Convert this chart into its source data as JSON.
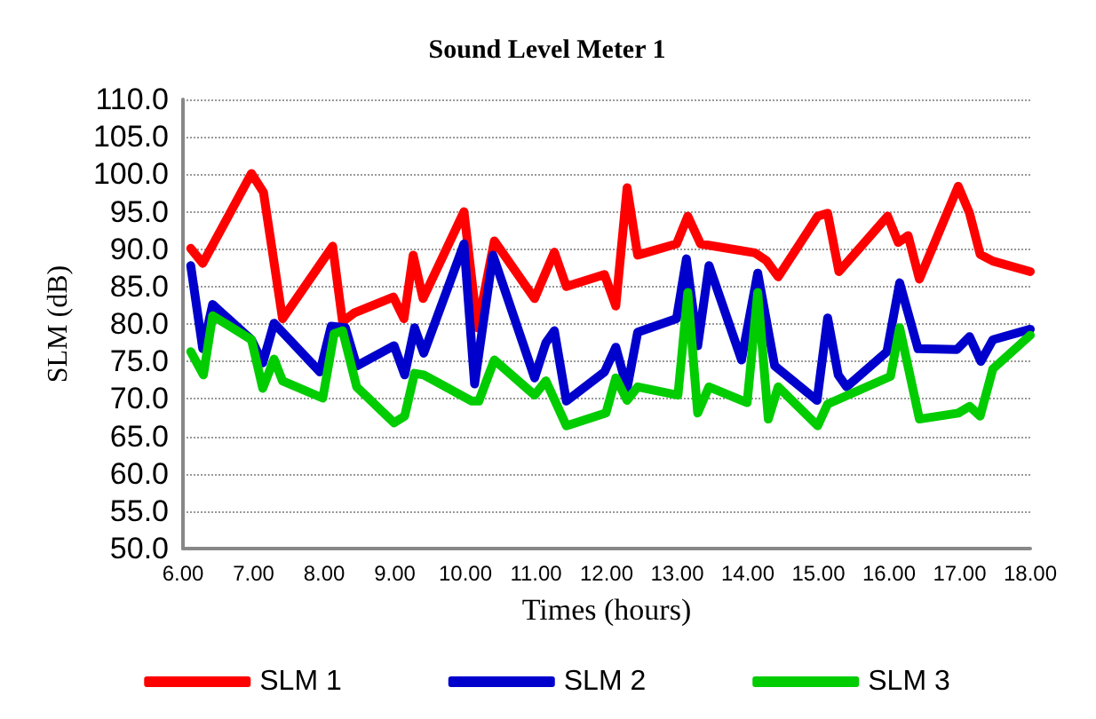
{
  "chart_data": {
    "type": "line",
    "title": "Sound Level Meter 1",
    "xlabel": "Times (hours)",
    "ylabel": "SLM (dB)",
    "xlim": [
      6,
      18
    ],
    "xticks": [
      {
        "value": 6,
        "label": "6.00"
      },
      {
        "value": 7,
        "label": "7.00"
      },
      {
        "value": 8,
        "label": "8.00"
      },
      {
        "value": 9,
        "label": "9.00"
      },
      {
        "value": 10,
        "label": "10.00"
      },
      {
        "value": 11,
        "label": "11.00"
      },
      {
        "value": 12,
        "label": "12.00"
      },
      {
        "value": 13,
        "label": "13.00"
      },
      {
        "value": 14,
        "label": "14.00"
      },
      {
        "value": 15,
        "label": "15.00"
      },
      {
        "value": 16,
        "label": "16.00"
      },
      {
        "value": 17,
        "label": "17.00"
      },
      {
        "value": 18,
        "label": "18.00"
      }
    ],
    "ylim": [
      50,
      110
    ],
    "yticks": [
      {
        "value": 50,
        "label": "50.0"
      },
      {
        "value": 55,
        "label": "55.0"
      },
      {
        "value": 60,
        "label": "60.0"
      },
      {
        "value": 65,
        "label": "65.0"
      },
      {
        "value": 70,
        "label": "70.0"
      },
      {
        "value": 75,
        "label": "75.0"
      },
      {
        "value": 80,
        "label": "80.0"
      },
      {
        "value": 85,
        "label": "85.0"
      },
      {
        "value": 90,
        "label": "90.0"
      },
      {
        "value": 95,
        "label": "95.0"
      },
      {
        "value": 100,
        "label": "100.0"
      },
      {
        "value": 105,
        "label": "105.0"
      },
      {
        "value": 110,
        "label": "110.0"
      }
    ],
    "grid": "y",
    "legend": "bottom",
    "marker": "none",
    "line_style": "solid",
    "series": [
      {
        "name": "SLM 1",
        "color": "#ff0000",
        "x": [
          6.11,
          6.28,
          6.97,
          7.14,
          7.41,
          8.12,
          8.26,
          8.43,
          8.98,
          9.13,
          9.26,
          9.4,
          9.98,
          10.17,
          10.41,
          10.98,
          11.26,
          11.43,
          11.97,
          12.13,
          12.29,
          12.44,
          12.99,
          13.15,
          13.33,
          14.1,
          14.26,
          14.43,
          14.99,
          15.13,
          15.29,
          15.98,
          16.13,
          16.27,
          16.43,
          16.98,
          17.14,
          17.29,
          17.47,
          18.0
        ],
        "values": [
          90.1,
          88.1,
          100.1,
          97.6,
          80.7,
          90.4,
          80.3,
          81.5,
          83.6,
          80.7,
          89.2,
          83.4,
          95.0,
          79.5,
          91.1,
          83.4,
          89.6,
          85.0,
          86.6,
          82.4,
          98.2,
          89.2,
          90.7,
          94.4,
          90.7,
          89.5,
          88.5,
          86.3,
          94.4,
          94.8,
          87.0,
          94.4,
          90.9,
          91.8,
          86.0,
          98.4,
          94.8,
          89.3,
          88.4,
          87.0
        ]
      },
      {
        "name": "SLM 2",
        "color": "#0000cc",
        "x": [
          6.11,
          6.28,
          6.42,
          6.97,
          7.13,
          7.29,
          7.94,
          8.1,
          8.3,
          8.46,
          8.99,
          9.14,
          9.28,
          9.41,
          9.98,
          10.13,
          10.39,
          10.98,
          11.14,
          11.26,
          11.43,
          11.97,
          12.13,
          12.29,
          12.44,
          12.99,
          13.13,
          13.29,
          13.45,
          13.91,
          14.14,
          14.38,
          14.98,
          15.13,
          15.28,
          15.4,
          15.97,
          16.15,
          16.41,
          16.96,
          17.14,
          17.3,
          17.47,
          18.0
        ],
        "values": [
          87.8,
          76.7,
          82.6,
          77.9,
          74.8,
          80.1,
          73.6,
          79.7,
          79.5,
          74.4,
          77.1,
          73.2,
          79.5,
          76.1,
          90.7,
          72.0,
          89.2,
          72.8,
          77.5,
          79.1,
          69.7,
          73.6,
          76.9,
          71.4,
          78.9,
          80.7,
          88.7,
          77.1,
          87.8,
          75.2,
          86.8,
          74.4,
          69.8,
          80.8,
          73.2,
          71.6,
          76.3,
          85.5,
          76.7,
          76.6,
          78.3,
          75.0,
          77.9,
          79.3
        ]
      },
      {
        "name": "SLM 3",
        "color": "#00cc00",
        "x": [
          6.11,
          6.29,
          6.42,
          6.97,
          7.13,
          7.29,
          7.41,
          7.98,
          8.14,
          8.26,
          8.46,
          8.99,
          9.14,
          9.28,
          9.41,
          10.09,
          10.19,
          10.41,
          10.98,
          11.14,
          11.43,
          11.99,
          12.13,
          12.29,
          12.44,
          13.01,
          13.15,
          13.29,
          13.45,
          13.99,
          14.14,
          14.29,
          14.43,
          14.99,
          15.13,
          16.02,
          16.15,
          16.43,
          16.98,
          17.14,
          17.29,
          17.47,
          18.0
        ],
        "values": [
          76.3,
          73.2,
          81.1,
          77.9,
          71.4,
          75.3,
          72.4,
          70.1,
          78.7,
          79.1,
          71.6,
          66.8,
          67.7,
          73.4,
          73.2,
          69.7,
          69.7,
          75.2,
          70.5,
          72.4,
          66.4,
          68.1,
          72.8,
          69.8,
          71.6,
          70.5,
          84.2,
          68.1,
          71.6,
          69.5,
          84.2,
          67.3,
          71.6,
          66.4,
          69.3,
          73.0,
          79.5,
          67.3,
          68.1,
          69.0,
          67.7,
          74.0,
          78.5
        ]
      }
    ]
  }
}
